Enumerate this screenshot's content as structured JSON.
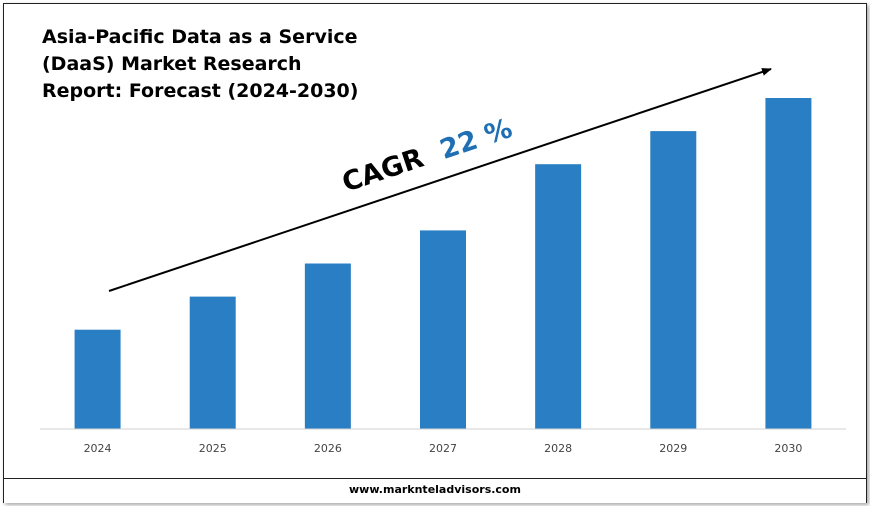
{
  "chart_data": {
    "type": "bar",
    "title_lines": [
      "Asia-Pacific Data as a Service",
      "(DaaS) Market Research",
      "Report: Forecast (2024-2030)"
    ],
    "categories": [
      "2024",
      "2025",
      "2026",
      "2027",
      "2028",
      "2029",
      "2030"
    ],
    "values": [
      30,
      40,
      50,
      60,
      80,
      90,
      100
    ],
    "ylim": [
      0,
      100
    ],
    "xlabel": "",
    "ylabel": "",
    "grid": false,
    "annotation": {
      "label": "CAGR",
      "value": "22 %"
    }
  },
  "colors": {
    "bar": "#2a7fc4",
    "annotation_value": "#1f6fb5",
    "arrow": "#000000",
    "axis": "#d0d0d0"
  },
  "footer": {
    "website": "www.marknteladvisors.com"
  }
}
